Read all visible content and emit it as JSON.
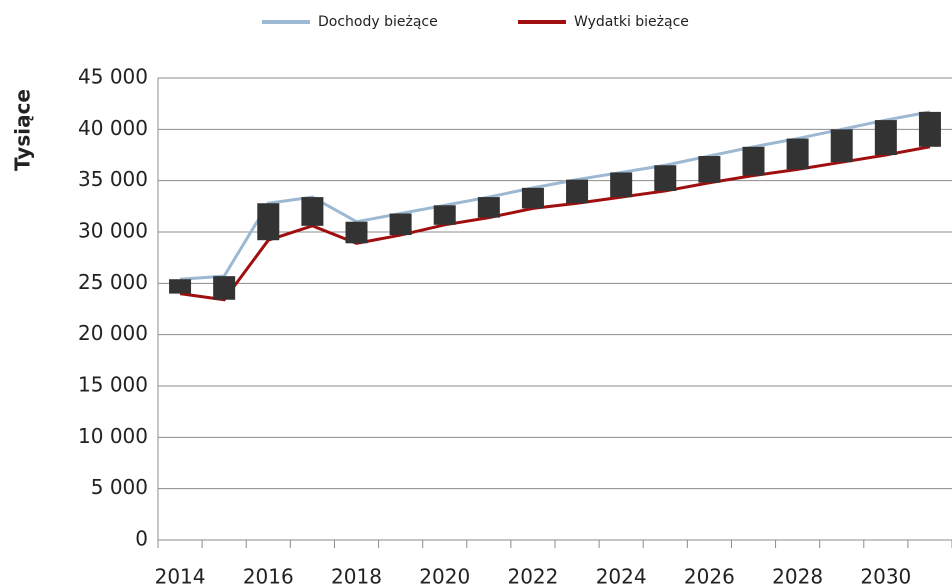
{
  "chart_data": {
    "type": "line",
    "y_label": "Tysiące",
    "categories": [
      "2014",
      null,
      "2016",
      null,
      "2018",
      null,
      "2020",
      null,
      "2022",
      null,
      "2024",
      null,
      "2026",
      null,
      "2028",
      null,
      "2030",
      null
    ],
    "series": [
      {
        "name": "Dochody bieżące",
        "color": "#9db8d2",
        "values": [
          25400,
          25700,
          32800,
          33400,
          31000,
          31800,
          32600,
          33400,
          34300,
          35100,
          35800,
          36500,
          37400,
          38300,
          39100,
          40000,
          40900,
          41700
        ]
      },
      {
        "name": "Wydatki bieżące",
        "color": "#a00f0f",
        "values": [
          24000,
          23400,
          29200,
          30600,
          28900,
          29700,
          30700,
          31400,
          32300,
          32800,
          33400,
          34000,
          34800,
          35500,
          36100,
          36800,
          37500,
          38300
        ]
      }
    ],
    "up_down_bars": true,
    "bar_color": "#333333",
    "ylim": [
      0,
      45000
    ],
    "yticks": [
      0,
      {
        "value": 5000,
        "label": "5 000"
      },
      {
        "value": 10000,
        "label": "10 000"
      },
      {
        "value": 15000,
        "label": "15 000"
      },
      {
        "value": 20000,
        "label": "20 000"
      },
      {
        "value": 25000,
        "label": "25 000"
      },
      {
        "value": 30000,
        "label": "30 000"
      },
      {
        "value": 35000,
        "label": "35 000"
      },
      {
        "value": 40000,
        "label": "40 000"
      },
      {
        "value": 45000,
        "label": "45 000"
      }
    ],
    "grid": true,
    "legend": "top"
  }
}
